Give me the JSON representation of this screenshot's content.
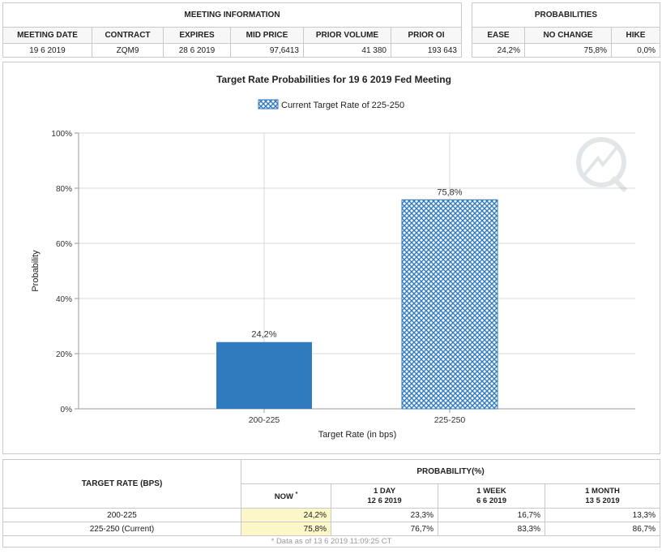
{
  "meeting_info": {
    "title": "MEETING INFORMATION",
    "columns": [
      "MEETING DATE",
      "CONTRACT",
      "EXPIRES",
      "MID PRICE",
      "PRIOR VOLUME",
      "PRIOR OI"
    ],
    "values": [
      "19 6 2019",
      "ZQM9",
      "28 6 2019",
      "97,6413",
      "41 380",
      "193 643"
    ]
  },
  "probabilities": {
    "title": "PROBABILITIES",
    "columns": [
      "EASE",
      "NO CHANGE",
      "HIKE"
    ],
    "values": [
      "24,2%",
      "75,8%",
      "0,0%"
    ]
  },
  "chart_data": {
    "type": "bar",
    "title": "Target Rate Probabilities for 19 6 2019 Fed Meeting",
    "legend": "Current Target Rate of 225-250",
    "legend_position": "top-center",
    "xlabel": "Target Rate (in bps)",
    "ylabel": "Probability",
    "categories": [
      "200-225",
      "225-250"
    ],
    "values": [
      24.2,
      75.8
    ],
    "value_labels": [
      "24,2%",
      "75,8%"
    ],
    "ylim": [
      0,
      100
    ],
    "yticks": [
      0,
      20,
      40,
      60,
      80,
      100
    ],
    "ytick_labels": [
      "0%",
      "20%",
      "40%",
      "60%",
      "80%",
      "100%"
    ],
    "grid": true,
    "colors": {
      "solid": "#2f7bbd",
      "hatch": "#2f7bbd"
    },
    "current_category_index": 1
  },
  "rate_table": {
    "target_header": "TARGET RATE (BPS)",
    "probability_header": "PROBABILITY(%)",
    "periods": [
      {
        "line1": "NOW",
        "line2": "*"
      },
      {
        "line1": "1 DAY",
        "line2": "12 6 2019"
      },
      {
        "line1": "1 WEEK",
        "line2": "6 6 2019"
      },
      {
        "line1": "1 MONTH",
        "line2": "13 5 2019"
      }
    ],
    "rows": [
      {
        "rate": "200-225",
        "values": [
          "24,2%",
          "23,3%",
          "16,7%",
          "13,3%"
        ]
      },
      {
        "rate": "225-250 (Current)",
        "values": [
          "75,8%",
          "76,7%",
          "83,3%",
          "86,7%"
        ]
      }
    ],
    "footnote": "* Data as of 13 6 2019 11:09:25 CT"
  }
}
